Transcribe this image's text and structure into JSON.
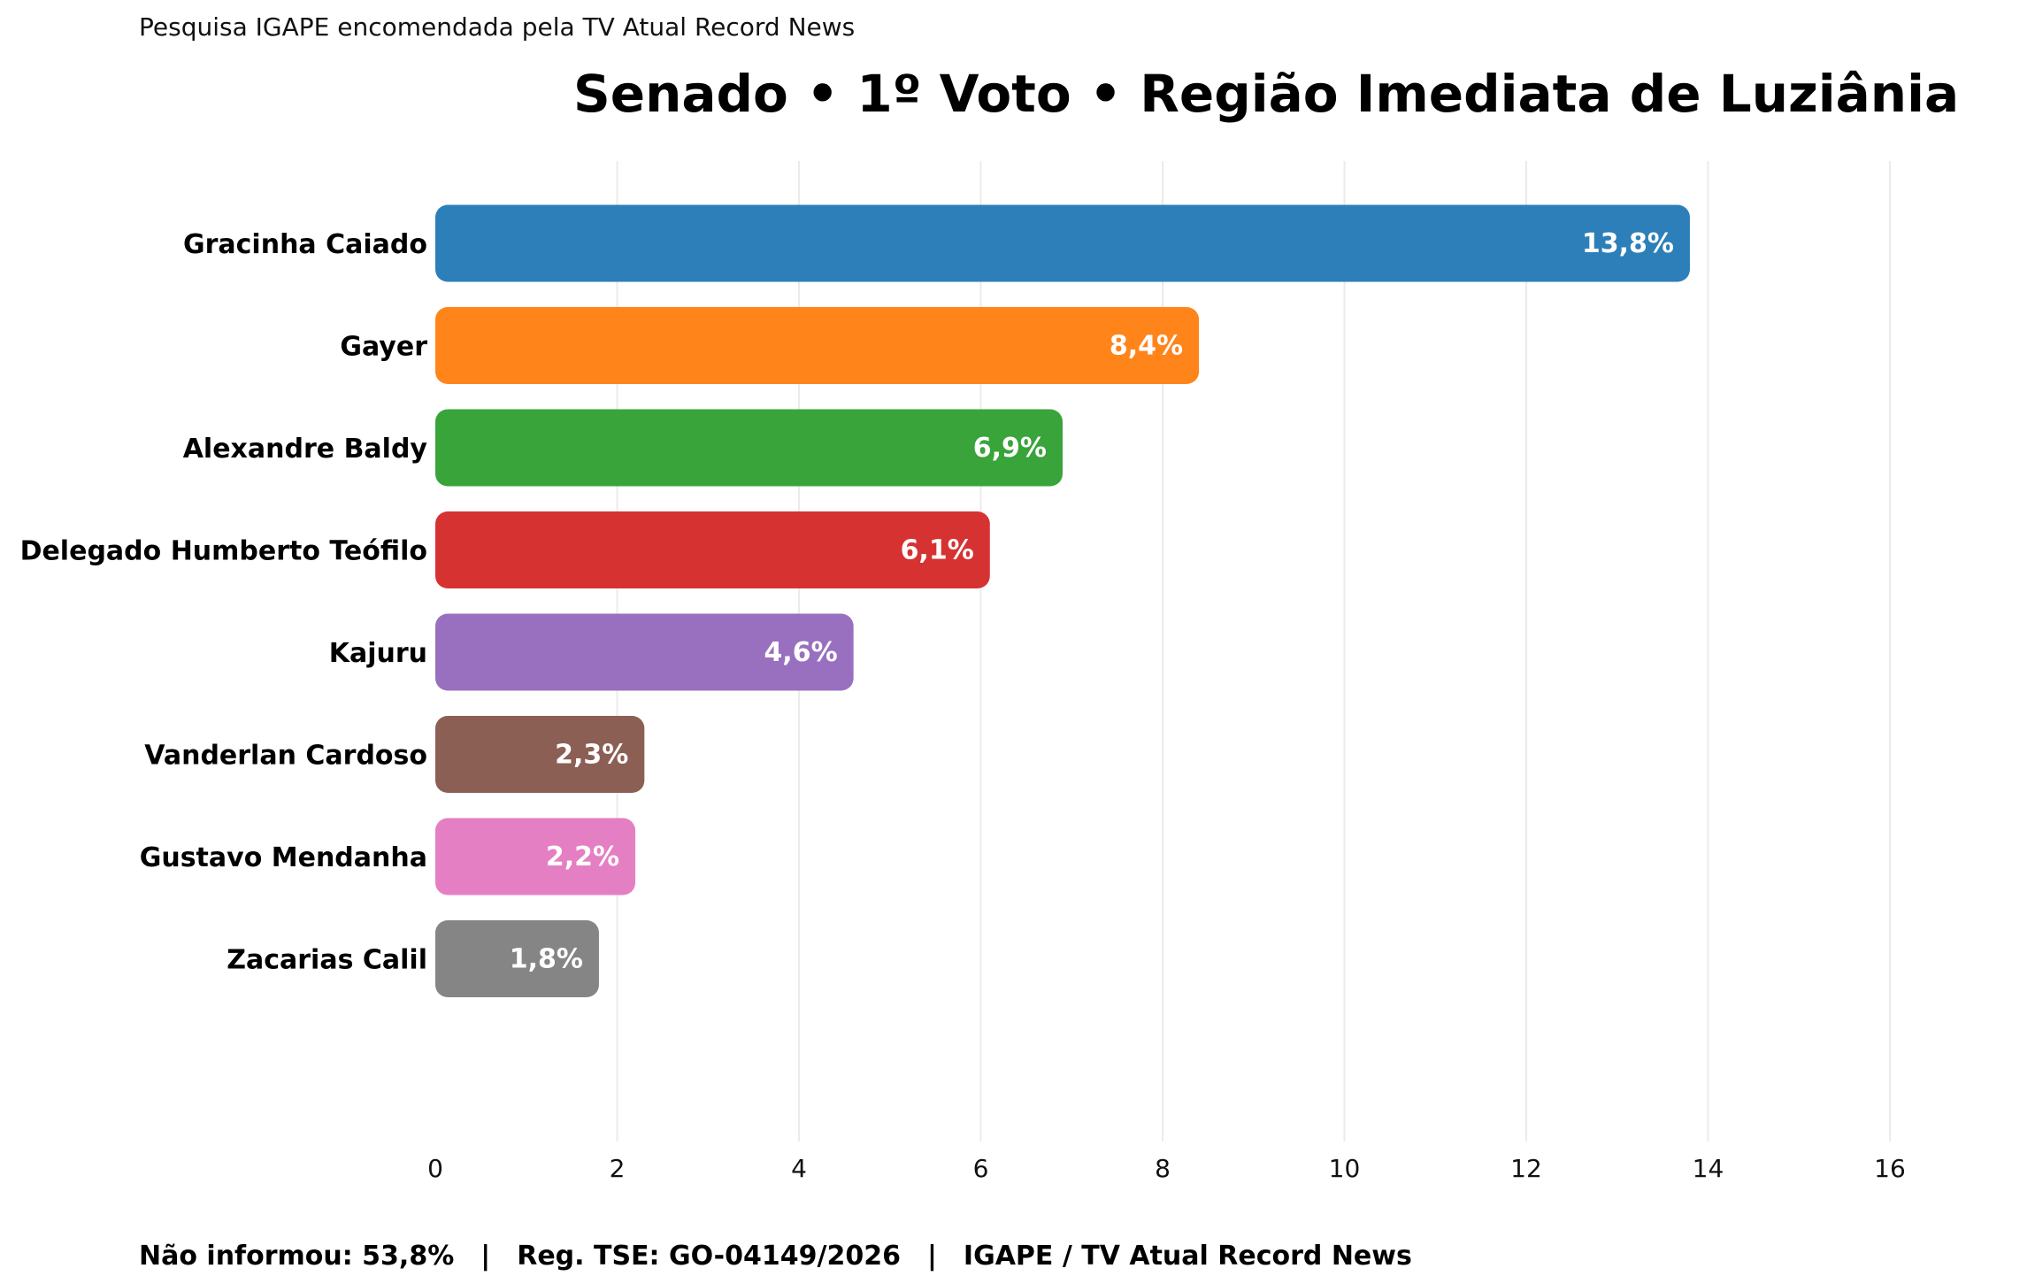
{
  "header": {
    "subtitle": "Pesquisa IGAPE encomendada pela TV Atual Record News"
  },
  "chart_data": {
    "type": "bar",
    "orientation": "horizontal",
    "title": "Senado • 1º Voto • Região Imediata de Luziânia",
    "categories": [
      "Gracinha Caiado",
      "Gayer",
      "Alexandre Baldy",
      "Delegado Humberto Teófilo",
      "Kajuru",
      "Vanderlan Cardoso",
      "Gustavo Mendanha",
      "Zacarias Calil"
    ],
    "values": [
      13.8,
      8.4,
      6.9,
      6.1,
      4.6,
      2.3,
      2.2,
      1.8
    ],
    "data_labels": [
      "13,8%",
      "8,4%",
      "6,9%",
      "6,1%",
      "4,6%",
      "2,3%",
      "2,2%",
      "1,8%"
    ],
    "colors": [
      "#2c7fb8",
      "#ff851b",
      "#38a43a",
      "#d63232",
      "#9870bf",
      "#8c5f55",
      "#e57fc4",
      "#858585"
    ],
    "xlim": [
      0,
      16
    ],
    "xticks": [
      "0",
      "2",
      "4",
      "6",
      "8",
      "10",
      "12",
      "14",
      "16"
    ],
    "grid": "vertical",
    "xlabel": "",
    "ylabel": ""
  },
  "footer": {
    "nao_informou": "Não informou: 53,8%",
    "registro": "Reg. TSE: GO-04149/2026",
    "fonte": "IGAPE / TV Atual Record News",
    "separator": "|"
  }
}
